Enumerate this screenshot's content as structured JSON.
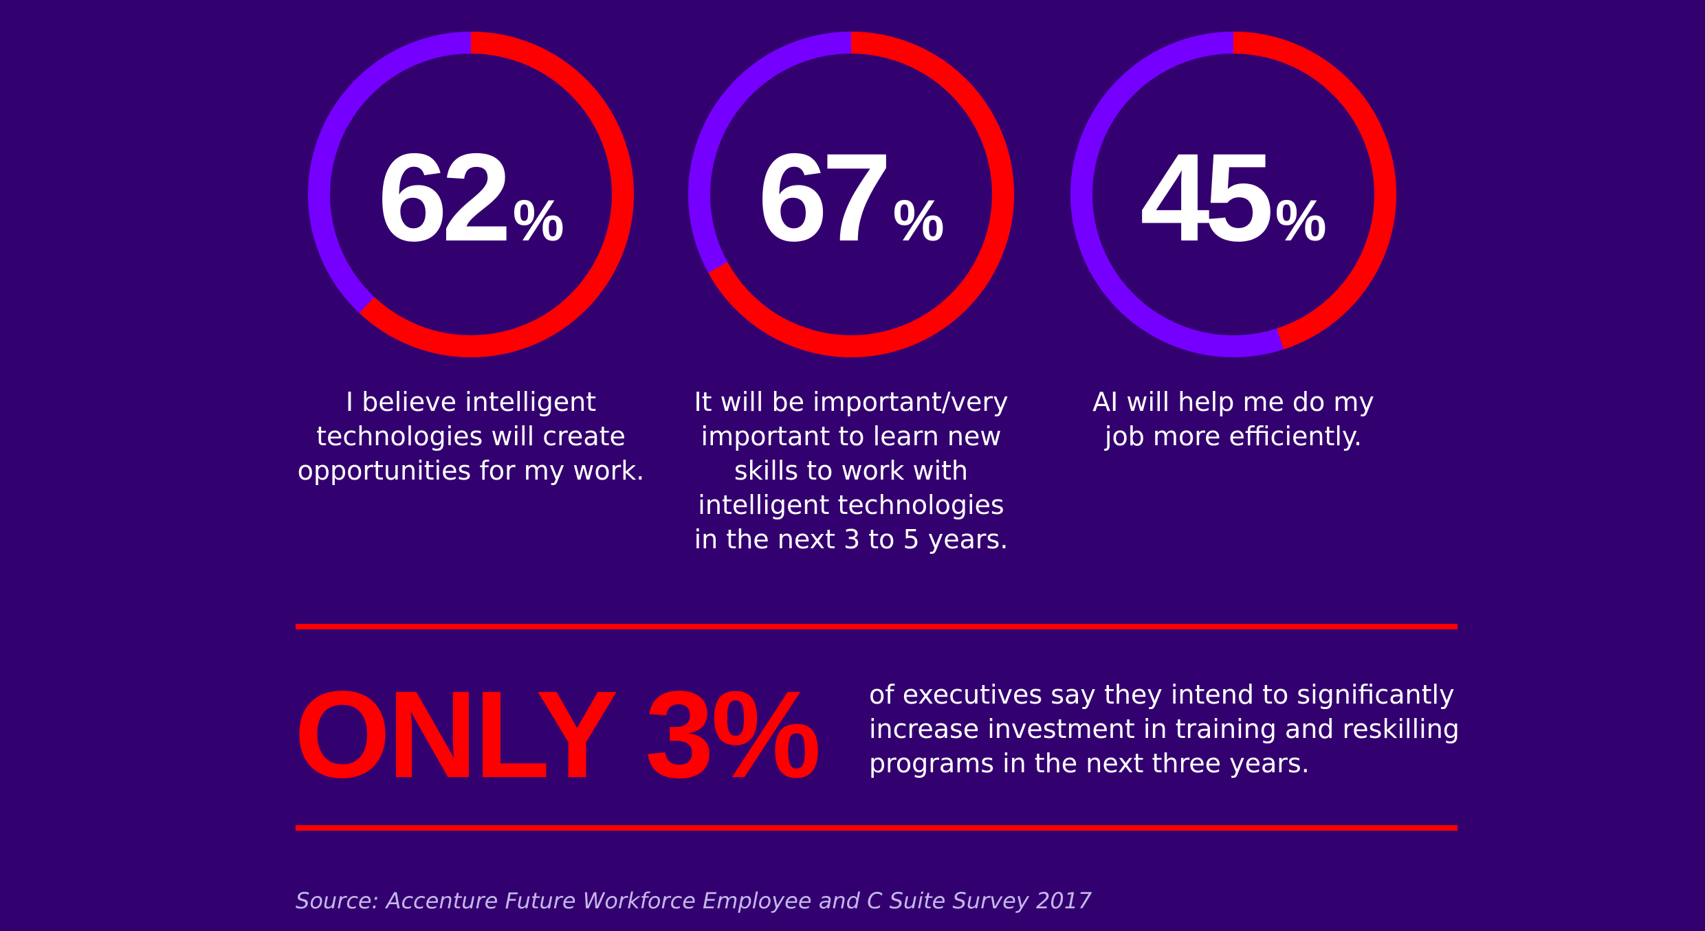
{
  "colors": {
    "background": "#33006f",
    "accent_red": "#ff0000",
    "accent_purple": "#7500ff",
    "text": "#ffffff",
    "source_text": "#c4b8ec"
  },
  "chart_data": {
    "type": "pie",
    "variant": "donut",
    "items": [
      {
        "value": 62,
        "value_label": "62",
        "unit": "%",
        "caption": "I believe intelligent\ntechnologies will create\nopportunities for my work."
      },
      {
        "value": 67,
        "value_label": "67",
        "unit": "%",
        "caption": "It will be important/very\nimportant to learn new\nskills to work with\nintelligent technologies\nin the next 3 to 5 years."
      },
      {
        "value": 45,
        "value_label": "45",
        "unit": "%",
        "caption": "AI will help me do my\njob more efficiently."
      }
    ]
  },
  "highlight": {
    "text": "ONLY 3%",
    "description": "of executives say they intend to significantly\nincrease investment in training and reskilling\nprograms in the next three years."
  },
  "source": "Source: Accenture Future Workforce Employee and C Suite Survey 2017"
}
